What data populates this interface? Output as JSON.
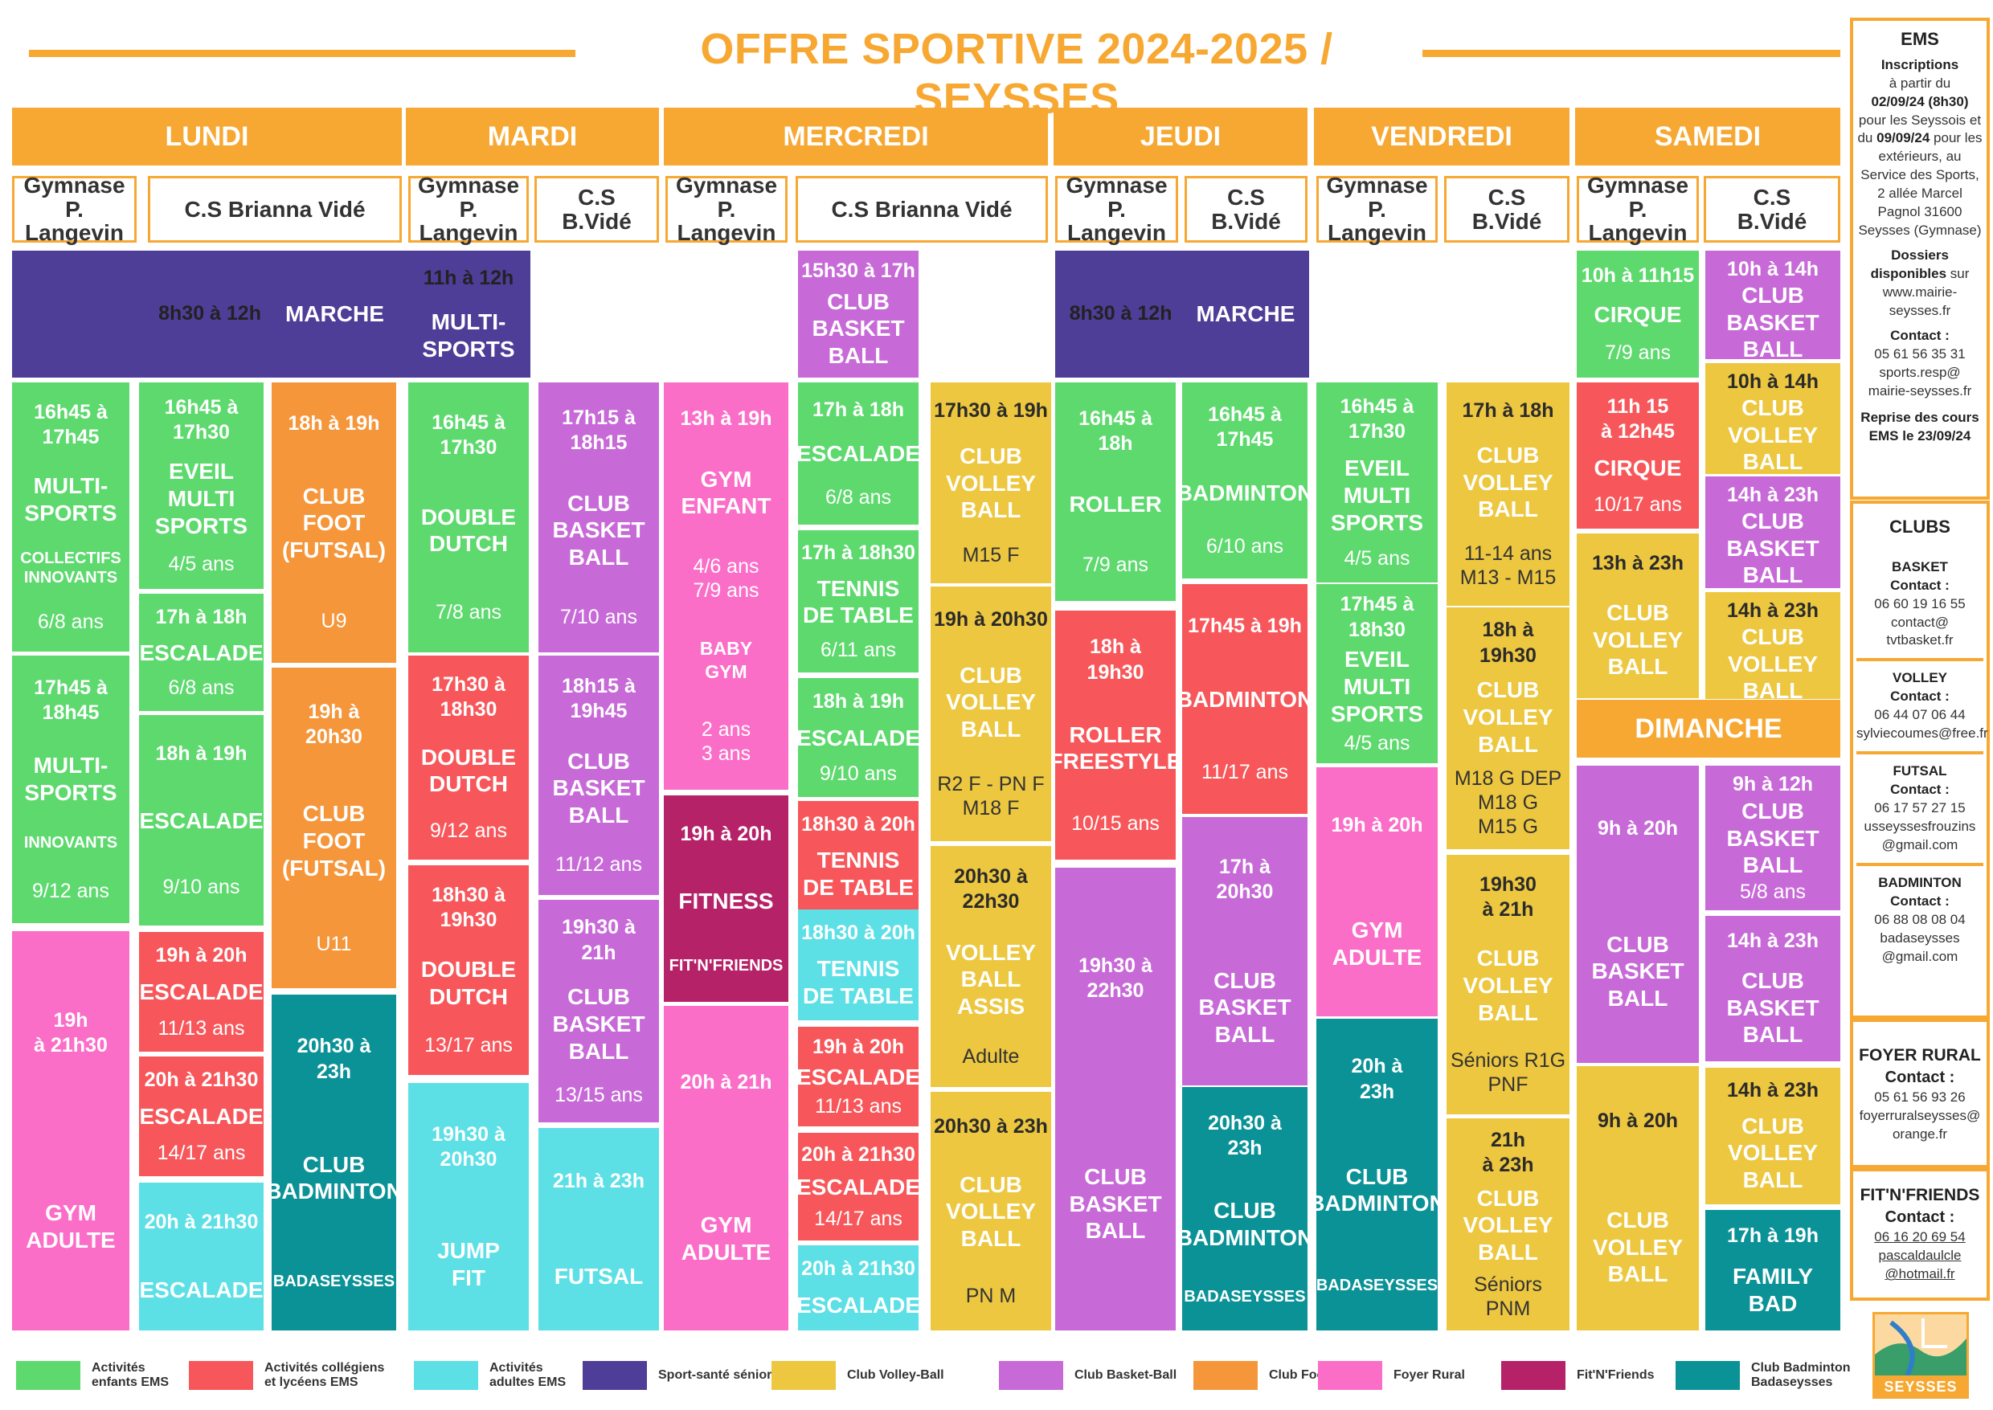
{
  "title": "OFFRE SPORTIVE 2024-2025 / SEYSSES",
  "days": [
    "LUNDI",
    "MARDI",
    "MERCREDI",
    "JEUDI",
    "VENDREDI",
    "SAMEDI",
    "DIMANCHE"
  ],
  "venues": {
    "gymnase": "Gymnase\nP. Langevin",
    "brianna": "C.S Brianna Vidé",
    "bvide": "C.S\nB.Vidé"
  },
  "colors": {
    "orange": "#f7a832"
  },
  "blocks": [
    {
      "c": "p",
      "time": "8h30 à 12h",
      "name": "MARCHE",
      "inline": true
    },
    {
      "c": "g",
      "time": "16h45 à\n17h45",
      "name": "MULTI-\nSPORTS",
      "extra": "COLLECTIFS\nINNOVANTS",
      "age": "6/8 ans"
    },
    {
      "c": "g",
      "time": "17h45 à\n18h45",
      "name": "MULTI-\nSPORTS",
      "extra": "INNOVANTS",
      "age": "9/12 ans"
    },
    {
      "c": "k",
      "time": "19h\nà 21h30",
      "name": "GYM\nADULTE"
    },
    {
      "c": "g",
      "time": "16h45 à\n17h30",
      "name": "EVEIL\nMULTI\nSPORTS",
      "age": "4/5 ans"
    },
    {
      "c": "g",
      "time": "17h à 18h",
      "name": "ESCALADE",
      "age": "6/8 ans"
    },
    {
      "c": "g",
      "time": "18h à 19h",
      "name": "ESCALADE",
      "age": "9/10 ans"
    },
    {
      "c": "r",
      "time": "19h à 20h",
      "name": "ESCALADE",
      "age": "11/13 ans"
    },
    {
      "c": "r",
      "time": "20h à 21h30",
      "name": "ESCALADE",
      "age": "14/17 ans"
    },
    {
      "c": "c",
      "time": "20h à 21h30",
      "name": "ESCALADE"
    },
    {
      "c": "o",
      "time": "18h à 19h",
      "name": "CLUB\nFOOT\n(FUTSAL)",
      "age": "U9"
    },
    {
      "c": "o",
      "time": "19h à\n20h30",
      "name": "CLUB\nFOOT\n(FUTSAL)",
      "age": "U11"
    },
    {
      "c": "tl",
      "time": "20h30 à\n23h",
      "name": "CLUB\nBADMINTON",
      "extra": "BADASEYSSES"
    },
    {
      "c": "p",
      "time": "11h à 12h",
      "name": "MULTI-\nSPORTS"
    },
    {
      "c": "g",
      "time": "16h45 à\n17h30",
      "name": "DOUBLE\nDUTCH",
      "age": "7/8 ans"
    },
    {
      "c": "r",
      "time": "17h30 à\n18h30",
      "name": "DOUBLE\nDUTCH",
      "age": "9/12 ans"
    },
    {
      "c": "r",
      "time": "18h30 à\n19h30",
      "name": "DOUBLE\nDUTCH",
      "age": "13/17 ans"
    },
    {
      "c": "c",
      "time": "19h30 à\n20h30",
      "name": "JUMP\nFIT"
    },
    {
      "c": "v",
      "time": "17h15 à\n18h15",
      "name": "CLUB\nBASKET\nBALL",
      "age": "7/10 ans"
    },
    {
      "c": "v",
      "time": "18h15 à\n19h45",
      "name": "CLUB\nBASKET\nBALL",
      "age": "11/12 ans"
    },
    {
      "c": "v",
      "time": "19h30 à\n21h",
      "name": "CLUB\nBASKET\nBALL",
      "age": "13/15 ans"
    },
    {
      "c": "c",
      "time": "21h à 23h",
      "name": "FUTSAL"
    },
    {
      "c": "k",
      "time": "13h à 19h",
      "name": "GYM\nENFANT",
      "age": "4/6 ans\n7/9 ans",
      "name2": "BABY\nGYM",
      "age2": "2 ans\n3 ans"
    },
    {
      "c": "m",
      "time": "19h à 20h",
      "name": "FITNESS",
      "extra": "FIT'N'FRIENDS"
    },
    {
      "c": "k",
      "time": "20h à 21h",
      "name": "GYM\nADULTE"
    },
    {
      "c": "v",
      "time": "15h30 à 17h",
      "name": "CLUB\nBASKET\nBALL"
    },
    {
      "c": "g",
      "time": "17h à 18h",
      "name": "ESCALADE",
      "age": "6/8 ans"
    },
    {
      "c": "g",
      "time": "17h à 18h30",
      "name": "TENNIS\nDE TABLE",
      "age": "6/11 ans"
    },
    {
      "c": "g",
      "time": "18h à 19h",
      "name": "ESCALADE",
      "age": "9/10 ans"
    },
    {
      "c": "r",
      "time": "18h30 à 20h",
      "name": "TENNIS\nDE TABLE"
    },
    {
      "c": "c",
      "time": "18h30 à 20h",
      "name": "TENNIS\nDE TABLE"
    },
    {
      "c": "r",
      "time": "19h à 20h",
      "name": "ESCALADE",
      "age": "11/13 ans"
    },
    {
      "c": "r",
      "time": "20h à 21h30",
      "name": "ESCALADE",
      "age": "14/17 ans"
    },
    {
      "c": "c",
      "time": "20h à 21h30",
      "name": "ESCALADE"
    },
    {
      "c": "y",
      "time": "17h30 à 19h",
      "name": "CLUB\nVOLLEY\nBALL",
      "age": "M15 F"
    },
    {
      "c": "y",
      "time": "19h à 20h30",
      "name": "CLUB\nVOLLEY\nBALL",
      "age": "R2 F - PN F\nM18 F"
    },
    {
      "c": "y",
      "time": "20h30 à\n22h30",
      "name": "VOLLEY\nBALL\nASSIS",
      "age": "Adulte"
    },
    {
      "c": "y",
      "time": "20h30 à 23h",
      "name": "CLUB\nVOLLEY\nBALL",
      "age": "PN M"
    },
    {
      "c": "p",
      "time": "8h30 à 12h",
      "name": "MARCHE",
      "inline": true
    },
    {
      "c": "g",
      "time": "16h45 à\n18h",
      "name": "ROLLER",
      "age": "7/9 ans"
    },
    {
      "c": "r",
      "time": "18h à\n19h30",
      "name": "ROLLER\nFREESTYLE",
      "age": "10/15 ans"
    },
    {
      "c": "v",
      "time": "19h30 à\n22h30",
      "name": "CLUB\nBASKET\nBALL"
    },
    {
      "c": "g",
      "time": "16h45 à\n17h45",
      "name": "BADMINTON",
      "age": "6/10 ans"
    },
    {
      "c": "r",
      "time": "17h45 à 19h",
      "name": "BADMINTON",
      "age": "11/17 ans"
    },
    {
      "c": "v",
      "time": "17h à\n20h30",
      "name": "CLUB\nBASKET\nBALL"
    },
    {
      "c": "tl",
      "time": "20h30 à\n23h",
      "name": "CLUB\nBADMINTON",
      "extra": "BADASEYSSES"
    },
    {
      "c": "g",
      "time": "16h45 à\n17h30",
      "name": "EVEIL\nMULTI\nSPORTS",
      "age": "4/5 ans"
    },
    {
      "c": "g",
      "time": "17h45 à\n18h30",
      "name": "EVEIL\nMULTI\nSPORTS",
      "age": "4/5 ans"
    },
    {
      "c": "k",
      "time": "19h à 20h",
      "name": "GYM\nADULTE"
    },
    {
      "c": "tl",
      "time": "20h à\n23h",
      "name": "CLUB\nBADMINTON",
      "extra": "BADASEYSSES"
    },
    {
      "c": "y",
      "time": "17h à 18h",
      "name": "CLUB\nVOLLEY\nBALL",
      "age": "11-14 ans\nM13 - M15"
    },
    {
      "c": "y",
      "time": "18h à\n19h30",
      "name": "CLUB\nVOLLEY\nBALL",
      "age": "M18 G DEP\nM18 G\nM15 G"
    },
    {
      "c": "y",
      "time": "19h30\nà 21h",
      "name": "CLUB\nVOLLEY\nBALL",
      "age": "Séniors R1G\nPNF"
    },
    {
      "c": "y",
      "time": "21h\nà 23h",
      "name": "CLUB\nVOLLEY\nBALL",
      "age": "Séniors PNM"
    },
    {
      "c": "g",
      "time": "10h à 11h15",
      "name": "CIRQUE",
      "age": "7/9 ans"
    },
    {
      "c": "r",
      "time": "11h 15\nà 12h45",
      "name": "CIRQUE",
      "age": "10/17 ans"
    },
    {
      "c": "y",
      "time": "13h à 23h",
      "name": "CLUB\nVOLLEY\nBALL"
    },
    {
      "c": "v",
      "time": "10h à 14h",
      "name": "CLUB\nBASKET\nBALL"
    },
    {
      "c": "y",
      "time": "10h à 14h",
      "name": "CLUB\nVOLLEY\nBALL"
    },
    {
      "c": "v",
      "time": "14h à 23h",
      "name": "CLUB\nBASKET\nBALL"
    },
    {
      "c": "y",
      "time": "14h à 23h",
      "name": "CLUB\nVOLLEY\nBALL"
    },
    {
      "c": "v",
      "time": "9h à 20h",
      "name": "CLUB\nBASKET\nBALL"
    },
    {
      "c": "y",
      "time": "9h à 20h",
      "name": "CLUB\nVOLLEY\nBALL"
    },
    {
      "c": "v",
      "time": "9h à 12h",
      "name": "CLUB\nBASKET\nBALL",
      "age": "5/8 ans"
    },
    {
      "c": "v",
      "time": "14h à 23h",
      "name": "CLUB\nBASKET\nBALL"
    },
    {
      "c": "y",
      "time": "14h à 23h",
      "name": "CLUB\nVOLLEY\nBALL"
    },
    {
      "c": "tl",
      "time": "17h à 19h",
      "name": "FAMILY\nBAD"
    }
  ],
  "sidebar": {
    "ems": {
      "title": "EMS",
      "inscriptions_label": "Inscriptions",
      "l1": "à partir du",
      "d1": "02/09/24 (8h30)",
      "l2": "pour les Seyssois et du",
      "d2": "09/09/24",
      "l3": "pour les extérieurs, au Service des Sports, 2 allée Marcel Pagnol 31600 Seysses (Gymnase)",
      "dossiers": "Dossiers disponibles",
      "dossiers_sur": "sur www.mairie-seysses.fr",
      "contact_label": "Contact :",
      "contact": "05 61 56 35 31\nsports.resp@\nmairie-seysses.fr",
      "reprise": "Reprise des cours EMS le 23/09/24"
    },
    "clubs": {
      "title": "CLUBS",
      "items": [
        {
          "name": "BASKET",
          "contact": "06 60 19 16 55\ncontact@\ntvtbasket.fr"
        },
        {
          "name": "VOLLEY",
          "contact": "06 44 07 06 44\nsylviecoumes@free.fr"
        },
        {
          "name": "FUTSAL",
          "contact": "06 17 57 27 15\nusseyssesfrouzins\n@gmail.com"
        },
        {
          "name": "BADMINTON",
          "contact": "06 88 08 08 04\nbadaseysses\n@gmail.com"
        }
      ]
    },
    "foyer": {
      "title": "FOYER RURAL",
      "contact": "05 61 56 93 26\nfoyerruralseysses@\norange.fr"
    },
    "fit": {
      "title": "FIT'N'FRIENDS",
      "contact": "06 16 20 69 54\npascaldaulcle\n@hotmail.fr"
    },
    "contact_label": "Contact :",
    "logo_text": "SEYSSES"
  },
  "legend": [
    {
      "c": "#5dd96e",
      "label": "Activités\nenfants EMS"
    },
    {
      "c": "#f7575a",
      "label": "Activités collégiens\net lycéens EMS"
    },
    {
      "c": "#5ce0e6",
      "label": "Activités\nadultes EMS"
    },
    {
      "c": "#4e3e97",
      "label": "Sport-santé séniors"
    },
    {
      "c": "#edc73f",
      "label": "Club Volley-Ball"
    },
    {
      "c": "#c76ad8",
      "label": "Club Basket-Ball"
    },
    {
      "c": "#f5963b",
      "label": "Club Foot"
    },
    {
      "c": "#fb6ec8",
      "label": "Foyer Rural"
    },
    {
      "c": "#b52268",
      "label": "Fit'N'Friends"
    },
    {
      "c": "#0b9297",
      "label": "Club Badminton\nBadaseysses"
    }
  ]
}
